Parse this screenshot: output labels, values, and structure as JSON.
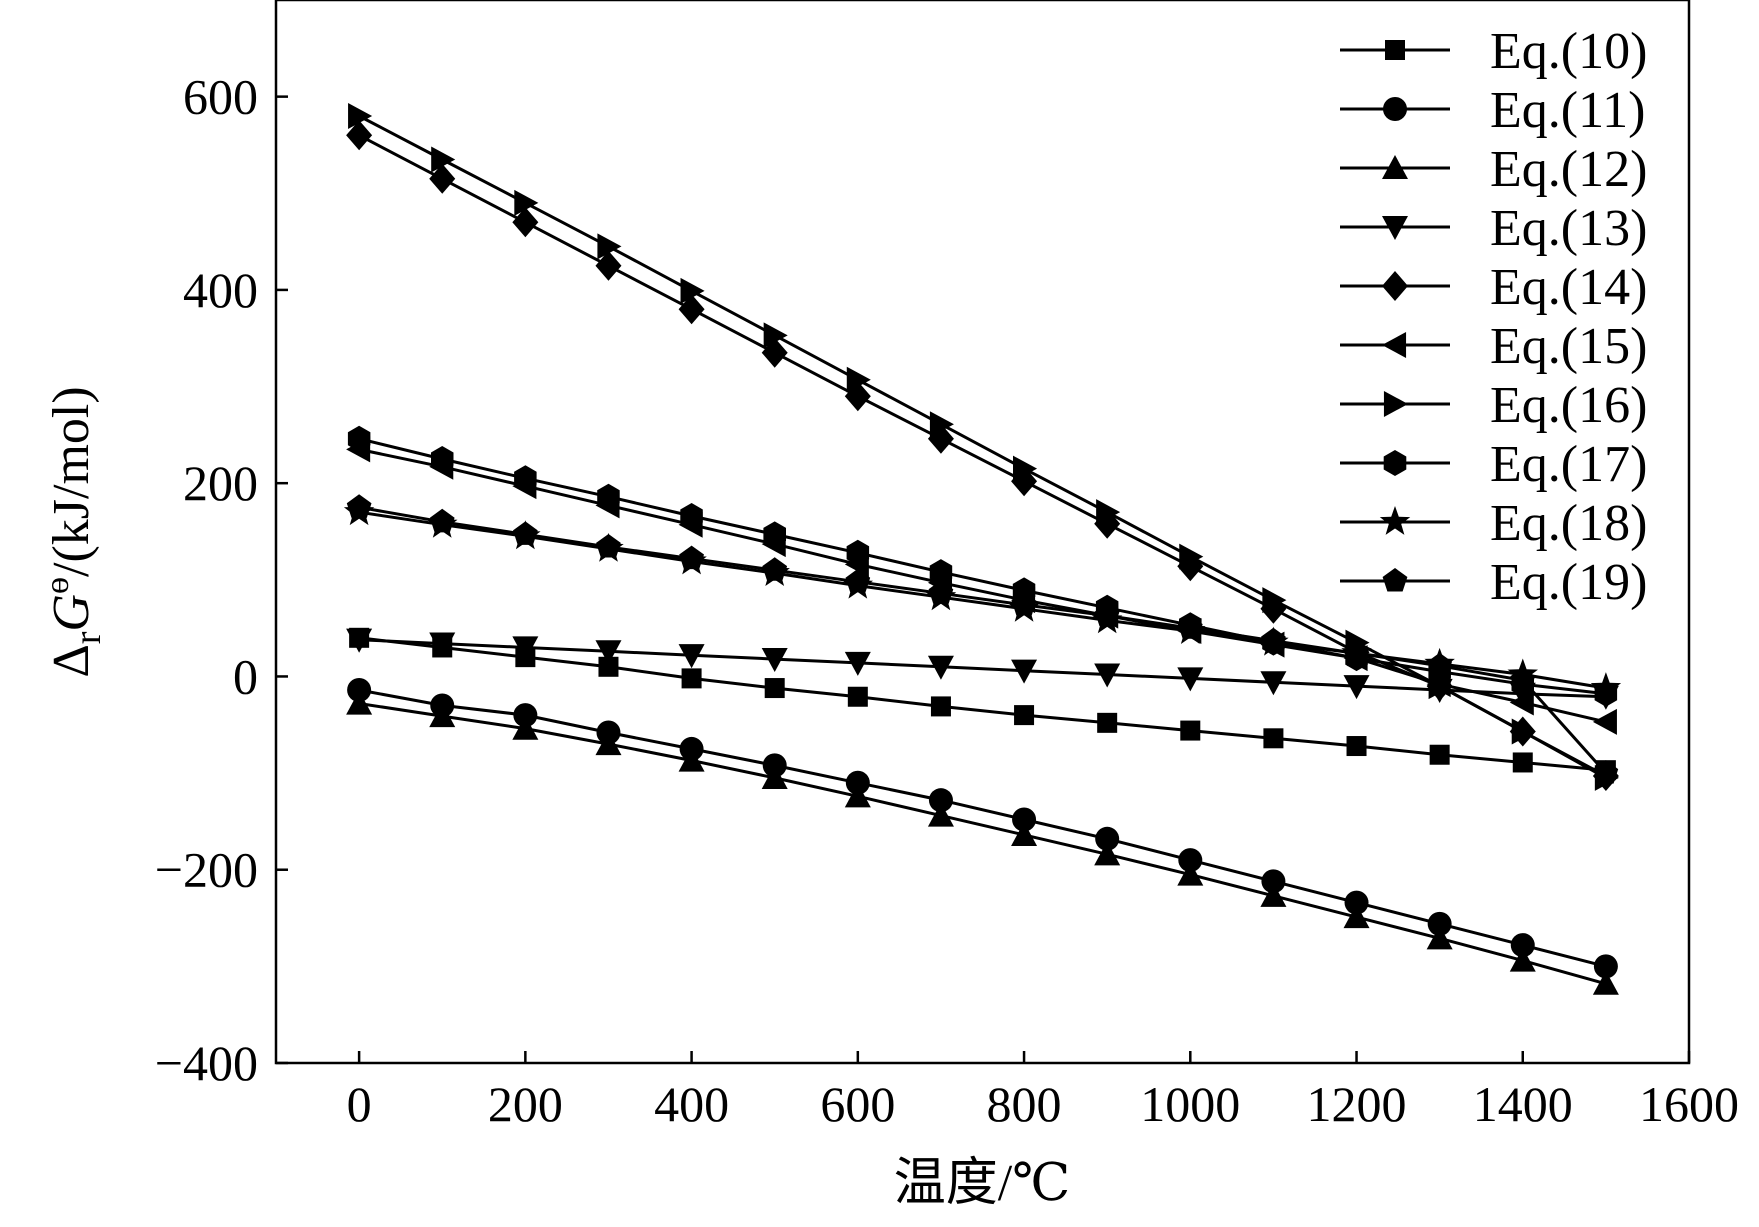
{
  "chart_data": {
    "type": "line",
    "xlabel": "温度/℃",
    "ylabel_parts": {
      "delta": "Δ",
      "sub": "r",
      "var": "G",
      "sup": "ө",
      "units": "/(kJ/mol)"
    },
    "xlim": [
      -100,
      1600
    ],
    "ylim": [
      -400,
      700
    ],
    "xticks": [
      0,
      200,
      400,
      600,
      800,
      1000,
      1200,
      1400,
      1600
    ],
    "yticks": [
      -400,
      -200,
      0,
      200,
      400,
      600
    ],
    "xtick_labels": [
      "0",
      "200",
      "400",
      "600",
      "800",
      "1000",
      "1200",
      "1400",
      "1600"
    ],
    "ytick_labels": [
      "−400",
      "−200",
      "0",
      "200",
      "400",
      "600"
    ],
    "grid": false,
    "legend_position": "top-right",
    "line_color": "#000000",
    "x": [
      0,
      100,
      200,
      300,
      400,
      500,
      600,
      700,
      800,
      900,
      1000,
      1100,
      1200,
      1300,
      1400,
      1500
    ],
    "series": [
      {
        "name": "Eq.(10)",
        "marker": "square",
        "values": [
          40,
          30,
          20,
          10,
          -2,
          -12,
          -21,
          -31,
          -40,
          -48,
          -56,
          -64,
          -72,
          -81,
          -89,
          -97
        ]
      },
      {
        "name": "Eq.(11)",
        "marker": "circle",
        "values": [
          -14,
          -30,
          -40,
          -58,
          -75,
          -92,
          -110,
          -128,
          -148,
          -168,
          -190,
          -212,
          -234,
          -256,
          -278,
          -300
        ]
      },
      {
        "name": "Eq.(12)",
        "marker": "triangle-up",
        "values": [
          -28,
          -41,
          -54,
          -70,
          -87,
          -105,
          -124,
          -144,
          -164,
          -184,
          -205,
          -227,
          -249,
          -271,
          -294,
          -318
        ]
      },
      {
        "name": "Eq.(13)",
        "marker": "triangle-down",
        "values": [
          38,
          34,
          30,
          26,
          22,
          18,
          14,
          10,
          6,
          2,
          -2,
          -6,
          -10,
          -14,
          -18,
          -21
        ]
      },
      {
        "name": "Eq.(14)",
        "marker": "diamond",
        "values": [
          560,
          515,
          470,
          425,
          380,
          335,
          290,
          246,
          202,
          158,
          114,
          70,
          25,
          -10,
          -57,
          -103
        ]
      },
      {
        "name": "Eq.(15)",
        "marker": "triangle-left",
        "values": [
          235,
          217,
          197,
          177,
          157,
          137,
          116,
          97,
          79,
          63,
          47,
          33,
          19,
          -8,
          -27,
          -47
        ]
      },
      {
        "name": "Eq.(16)",
        "marker": "triangle-right",
        "values": [
          580,
          535,
          490,
          445,
          399,
          353,
          307,
          261,
          215,
          170,
          124,
          79,
          35,
          -10,
          -57,
          -105
        ]
      },
      {
        "name": "Eq.(17)",
        "marker": "hexagon",
        "values": [
          246,
          225,
          205,
          186,
          166,
          147,
          128,
          108,
          89,
          71,
          53,
          35,
          19,
          5,
          -8,
          -18
        ]
      },
      {
        "name": "Eq.(18)",
        "marker": "star",
        "values": [
          170,
          157,
          145,
          132,
          119,
          107,
          94,
          82,
          70,
          58,
          47,
          35,
          24,
          13,
          2,
          -12
        ]
      },
      {
        "name": "Eq.(19)",
        "marker": "pentagon",
        "values": [
          175,
          160,
          147,
          134,
          122,
          110,
          98,
          86,
          74,
          63,
          50,
          37,
          24,
          11,
          -4,
          -100
        ]
      }
    ]
  }
}
